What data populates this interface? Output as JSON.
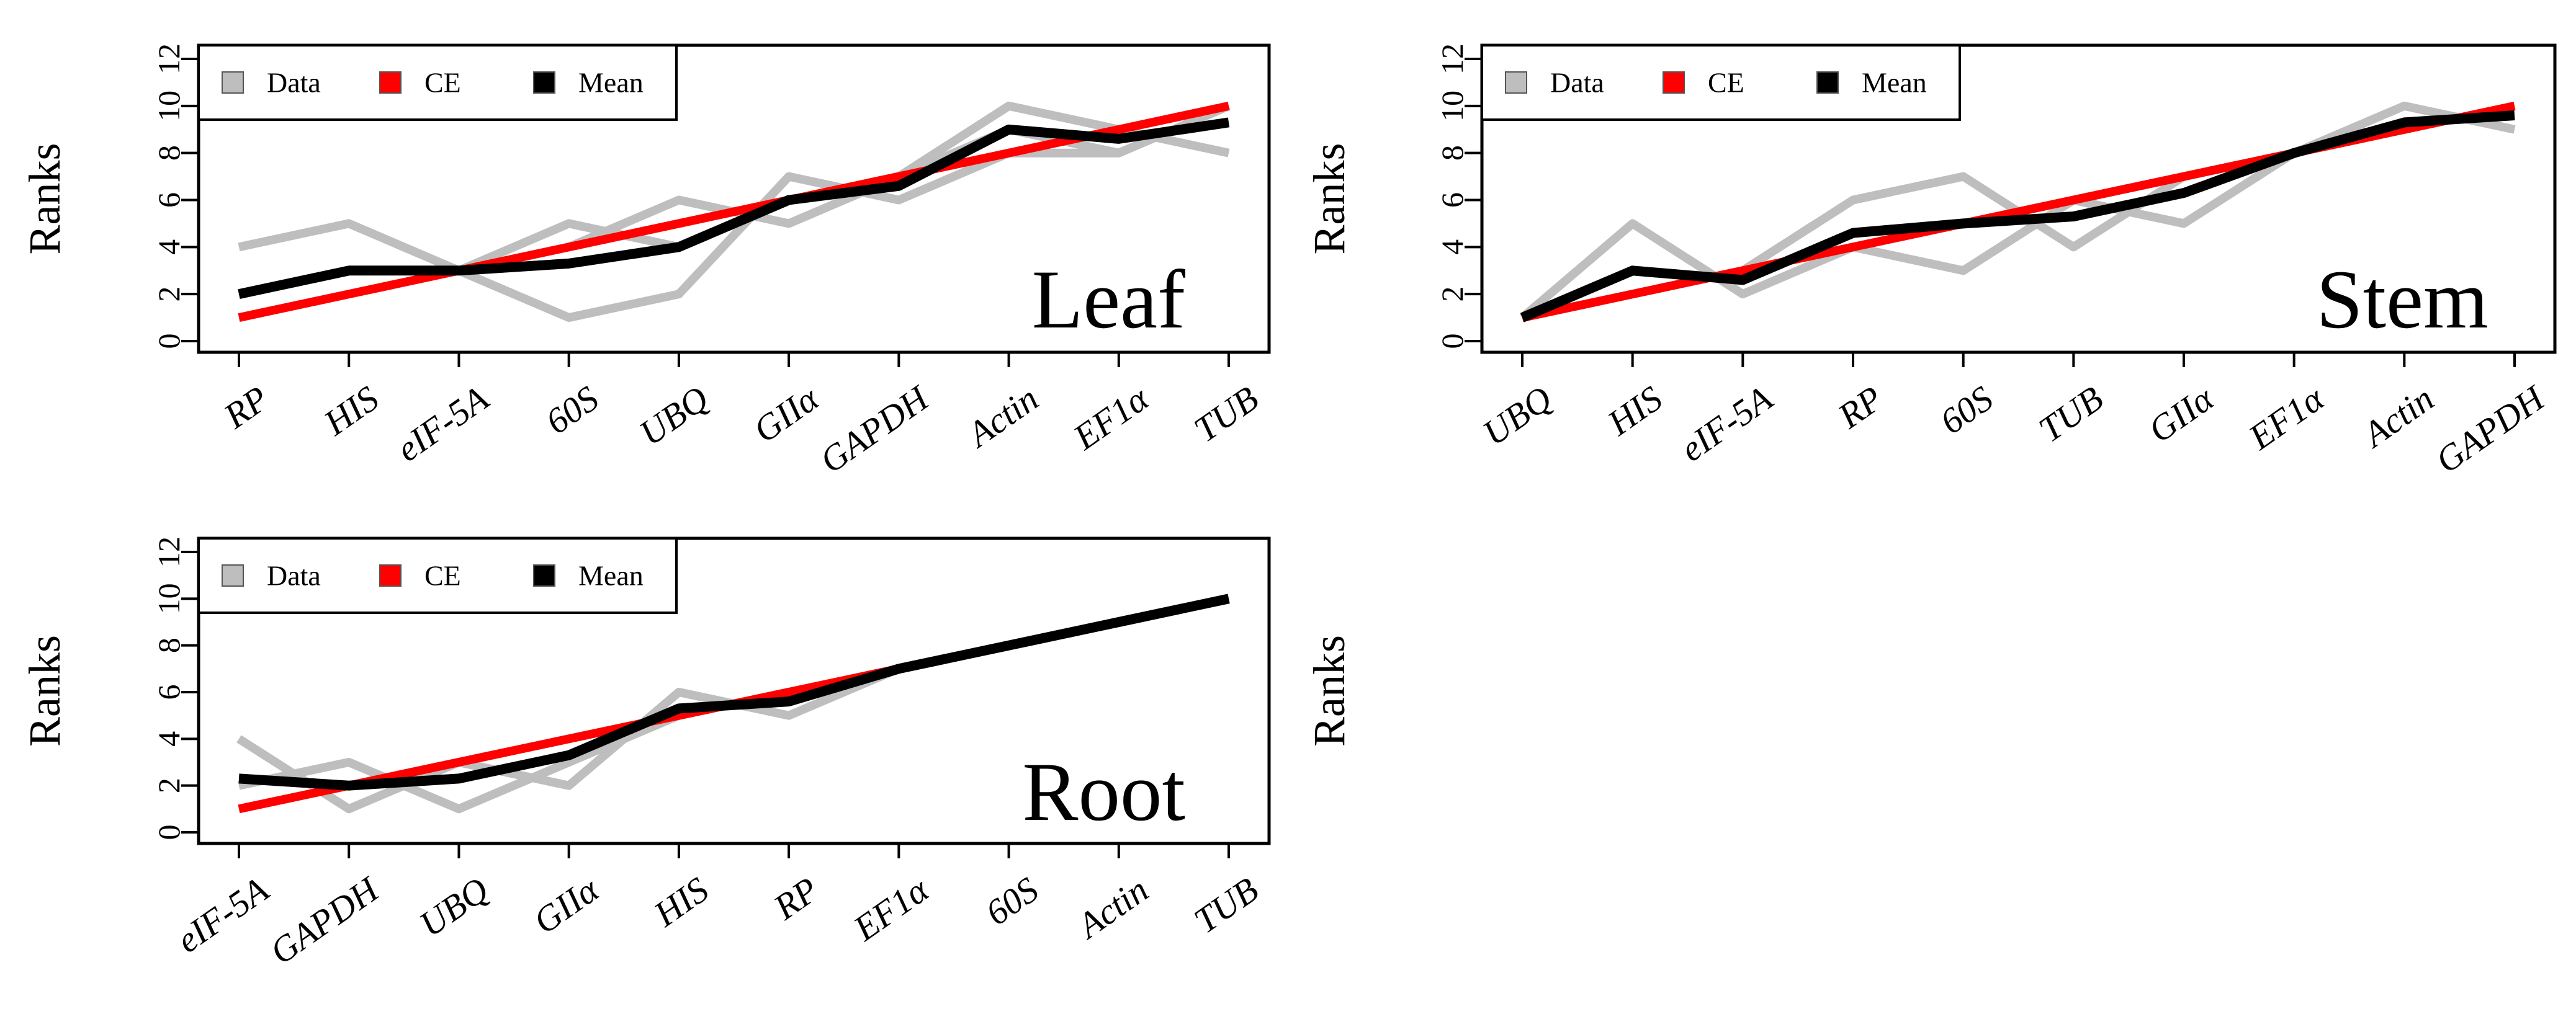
{
  "figure": {
    "background": "#ffffff"
  },
  "legend": {
    "entries": [
      {
        "label": "Data",
        "color": "#bebebe"
      },
      {
        "label": "CE",
        "color": "#ff0000"
      },
      {
        "label": "Mean",
        "color": "#000000"
      }
    ]
  },
  "chart_data": [
    {
      "type": "line",
      "title": "Leaf",
      "ylabel": "Ranks",
      "xlabel": "",
      "ylim": [
        0,
        12
      ],
      "yticks": [
        0,
        2,
        4,
        6,
        8,
        10,
        12
      ],
      "categories": [
        "RP",
        "HIS",
        "eIF-5A",
        "60S",
        "UBQ",
        "GIIα",
        "GAPDH",
        "Actin",
        "EF1α",
        "TUB"
      ],
      "series": [
        {
          "name": "Data",
          "values": [
            4,
            5,
            3,
            5,
            4,
            6,
            7,
            10,
            9,
            8
          ]
        },
        {
          "name": "Data",
          "values": [
            2,
            3,
            3,
            1,
            2,
            7,
            6,
            8,
            8,
            10
          ]
        },
        {
          "name": "Data",
          "values": [
            2,
            3,
            3,
            4,
            6,
            5,
            7,
            9,
            8,
            10
          ]
        },
        {
          "name": "CE",
          "values": [
            1,
            2,
            3,
            4,
            5,
            6,
            7,
            8,
            9,
            10
          ]
        },
        {
          "name": "Mean",
          "values": [
            2,
            3,
            3,
            3.3,
            4,
            6,
            6.6,
            9,
            8.6,
            9.3
          ]
        }
      ]
    },
    {
      "type": "line",
      "title": "Stem",
      "ylabel": "Ranks",
      "xlabel": "",
      "ylim": [
        0,
        12
      ],
      "yticks": [
        0,
        2,
        4,
        6,
        8,
        10,
        12
      ],
      "categories": [
        "UBQ",
        "HIS",
        "eIF-5A",
        "RP",
        "60S",
        "TUB",
        "GIIα",
        "EF1α",
        "Actin",
        "GAPDH"
      ],
      "series": [
        {
          "name": "Data",
          "values": [
            1,
            5,
            2,
            4,
            3,
            6,
            5,
            8,
            10,
            9
          ]
        },
        {
          "name": "Data",
          "values": [
            1,
            2,
            3,
            6,
            7,
            4,
            7,
            8,
            9,
            10
          ]
        },
        {
          "name": "Data",
          "values": [
            1,
            2,
            3,
            4,
            5,
            6,
            7,
            8,
            9,
            10
          ]
        },
        {
          "name": "CE",
          "values": [
            1,
            2,
            3,
            4,
            5,
            6,
            7,
            8,
            9,
            10
          ]
        },
        {
          "name": "Mean",
          "values": [
            1,
            3,
            2.6,
            4.6,
            5,
            5.3,
            6.3,
            8,
            9.3,
            9.6
          ]
        }
      ]
    },
    {
      "type": "line",
      "title": "Root",
      "ylabel": "Ranks",
      "xlabel": "",
      "ylim": [
        0,
        12
      ],
      "yticks": [
        0,
        2,
        4,
        6,
        8,
        10,
        12
      ],
      "categories": [
        "eIF-5A",
        "GAPDH",
        "UBQ",
        "GIIα",
        "HIS",
        "RP",
        "EF1α",
        "60S",
        "Actin",
        "TUB"
      ],
      "series": [
        {
          "name": "Data",
          "values": [
            4,
            1,
            3,
            2,
            6,
            5,
            7,
            8,
            9,
            10
          ]
        },
        {
          "name": "Data",
          "values": [
            2,
            3,
            1,
            3,
            5,
            6,
            7,
            8,
            9,
            10
          ]
        },
        {
          "name": "Data",
          "values": [
            1,
            2,
            3,
            4,
            5,
            6,
            7,
            8,
            9,
            10
          ]
        },
        {
          "name": "CE",
          "values": [
            1,
            2,
            3,
            4,
            5,
            6,
            7,
            8,
            9,
            10
          ]
        },
        {
          "name": "Mean",
          "values": [
            2.3,
            2,
            2.3,
            3.3,
            5.3,
            5.6,
            7,
            8,
            9,
            10
          ]
        }
      ]
    },
    {
      "type": "line",
      "title": "",
      "ylabel": "Ranks",
      "xlabel": "",
      "categories": [],
      "series": []
    }
  ]
}
